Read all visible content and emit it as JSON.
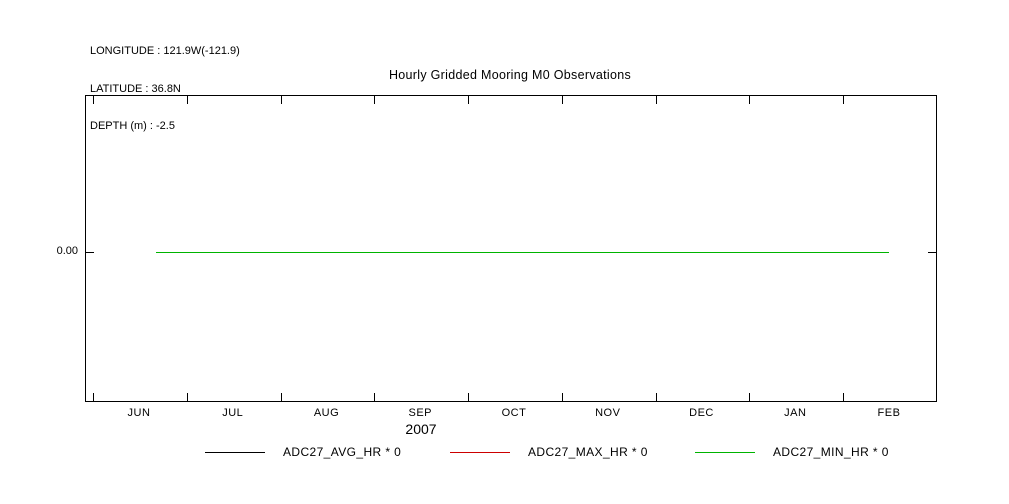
{
  "meta": {
    "longitude": "LONGITUDE : 121.9W(-121.9)",
    "latitude": "LATITUDE : 36.8N",
    "depth": "DEPTH (m) : -2.5"
  },
  "chart_data": {
    "type": "line",
    "title": "Hourly Gridded Mooring M0 Observations",
    "x_axis": {
      "tick_labels": [
        "JUN",
        "JUL",
        "AUG",
        "SEP",
        "OCT",
        "NOV",
        "DEC",
        "JAN",
        "FEB"
      ],
      "year_label": "2007"
    },
    "y_axis": {
      "tick_labels": [
        "0.00"
      ]
    },
    "series": [
      {
        "name": "ADC27_AVG_HR * 0",
        "color": "#000000",
        "values": [
          0,
          0,
          0,
          0,
          0,
          0,
          0,
          0,
          0
        ]
      },
      {
        "name": "ADC27_MAX_HR * 0",
        "color": "#cc0000",
        "values": [
          0,
          0,
          0,
          0,
          0,
          0,
          0,
          0,
          0
        ]
      },
      {
        "name": "ADC27_MIN_HR * 0",
        "color": "#00b400",
        "values": [
          0,
          0,
          0,
          0,
          0,
          0,
          0,
          0,
          0
        ]
      }
    ]
  }
}
